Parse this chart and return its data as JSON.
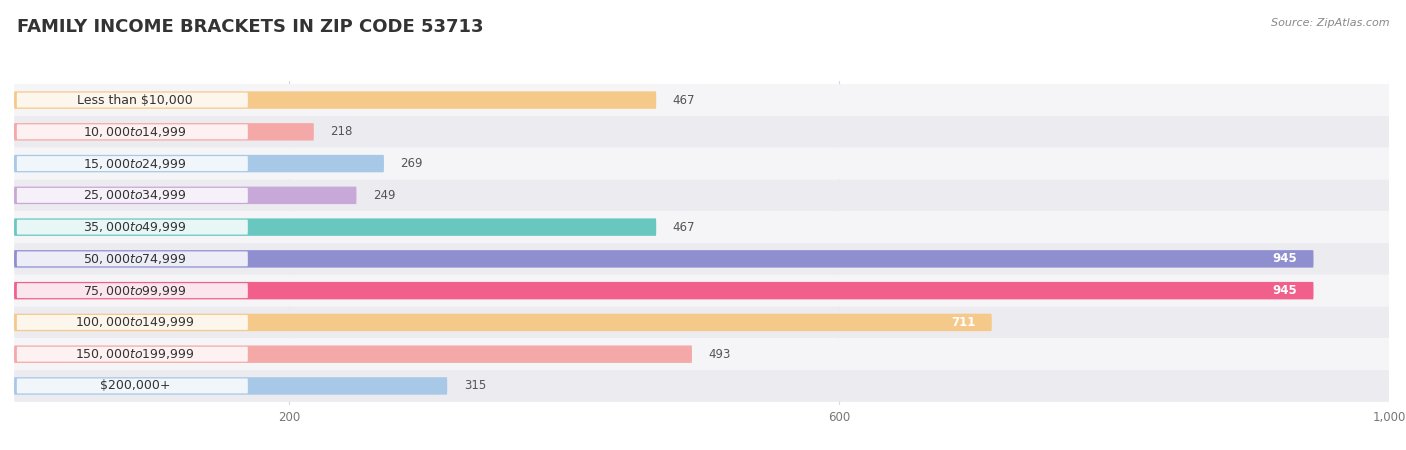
{
  "title": "FAMILY INCOME BRACKETS IN ZIP CODE 53713",
  "source": "Source: ZipAtlas.com",
  "categories": [
    "Less than $10,000",
    "$10,000 to $14,999",
    "$15,000 to $24,999",
    "$25,000 to $34,999",
    "$35,000 to $49,999",
    "$50,000 to $74,999",
    "$75,000 to $99,999",
    "$100,000 to $149,999",
    "$150,000 to $199,999",
    "$200,000+"
  ],
  "values": [
    467,
    218,
    269,
    249,
    467,
    945,
    945,
    711,
    493,
    315
  ],
  "bar_colors": [
    "#F5C98A",
    "#F4A9A8",
    "#A8C8E8",
    "#C8A8D8",
    "#68C8C0",
    "#8F8FD0",
    "#F0608A",
    "#F5C98A",
    "#F4A9A8",
    "#A8C8E8"
  ],
  "xlim_data": [
    0,
    1000
  ],
  "xticks": [
    200,
    600,
    1000
  ],
  "bg_color": "#ffffff",
  "row_bg_even": "#f5f5f8",
  "row_bg_odd": "#ebebf0",
  "grid_color": "#d8d8e0",
  "title_fontsize": 13,
  "label_fontsize": 9,
  "value_fontsize": 8.5,
  "value_inside_threshold": 500
}
